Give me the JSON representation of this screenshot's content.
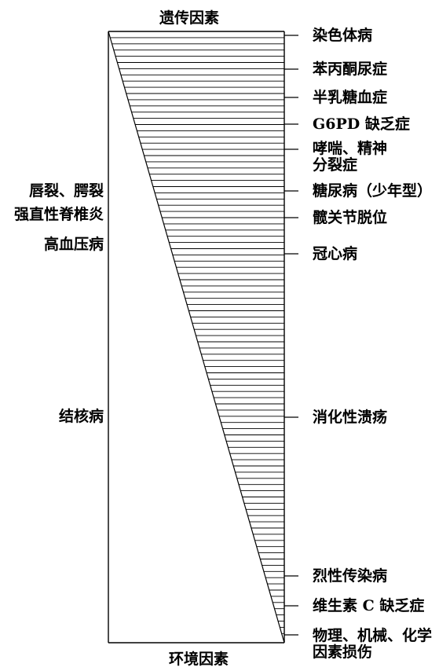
{
  "top_label": "遗传因素",
  "bottom_label": "环境因素",
  "right_labels": [
    "染色体病",
    "苯丙酮尿症",
    "半乳糖血症",
    "G6PD 缺乏症",
    "哮喘、精神分裂症",
    "糖尿病（少年型）",
    "髋关节脱位",
    "冠心病",
    "消化性溃疡",
    "烈性传染病",
    "维生素 C 缺乏症",
    "物理、机械、化学因素损伤"
  ],
  "left_labels": [
    "唇裂、腭裂",
    "强直性脊椎炎",
    "高血压病",
    "结核病"
  ],
  "colors": {
    "line": "#000000",
    "text": "#000000",
    "background": "#ffffff"
  }
}
